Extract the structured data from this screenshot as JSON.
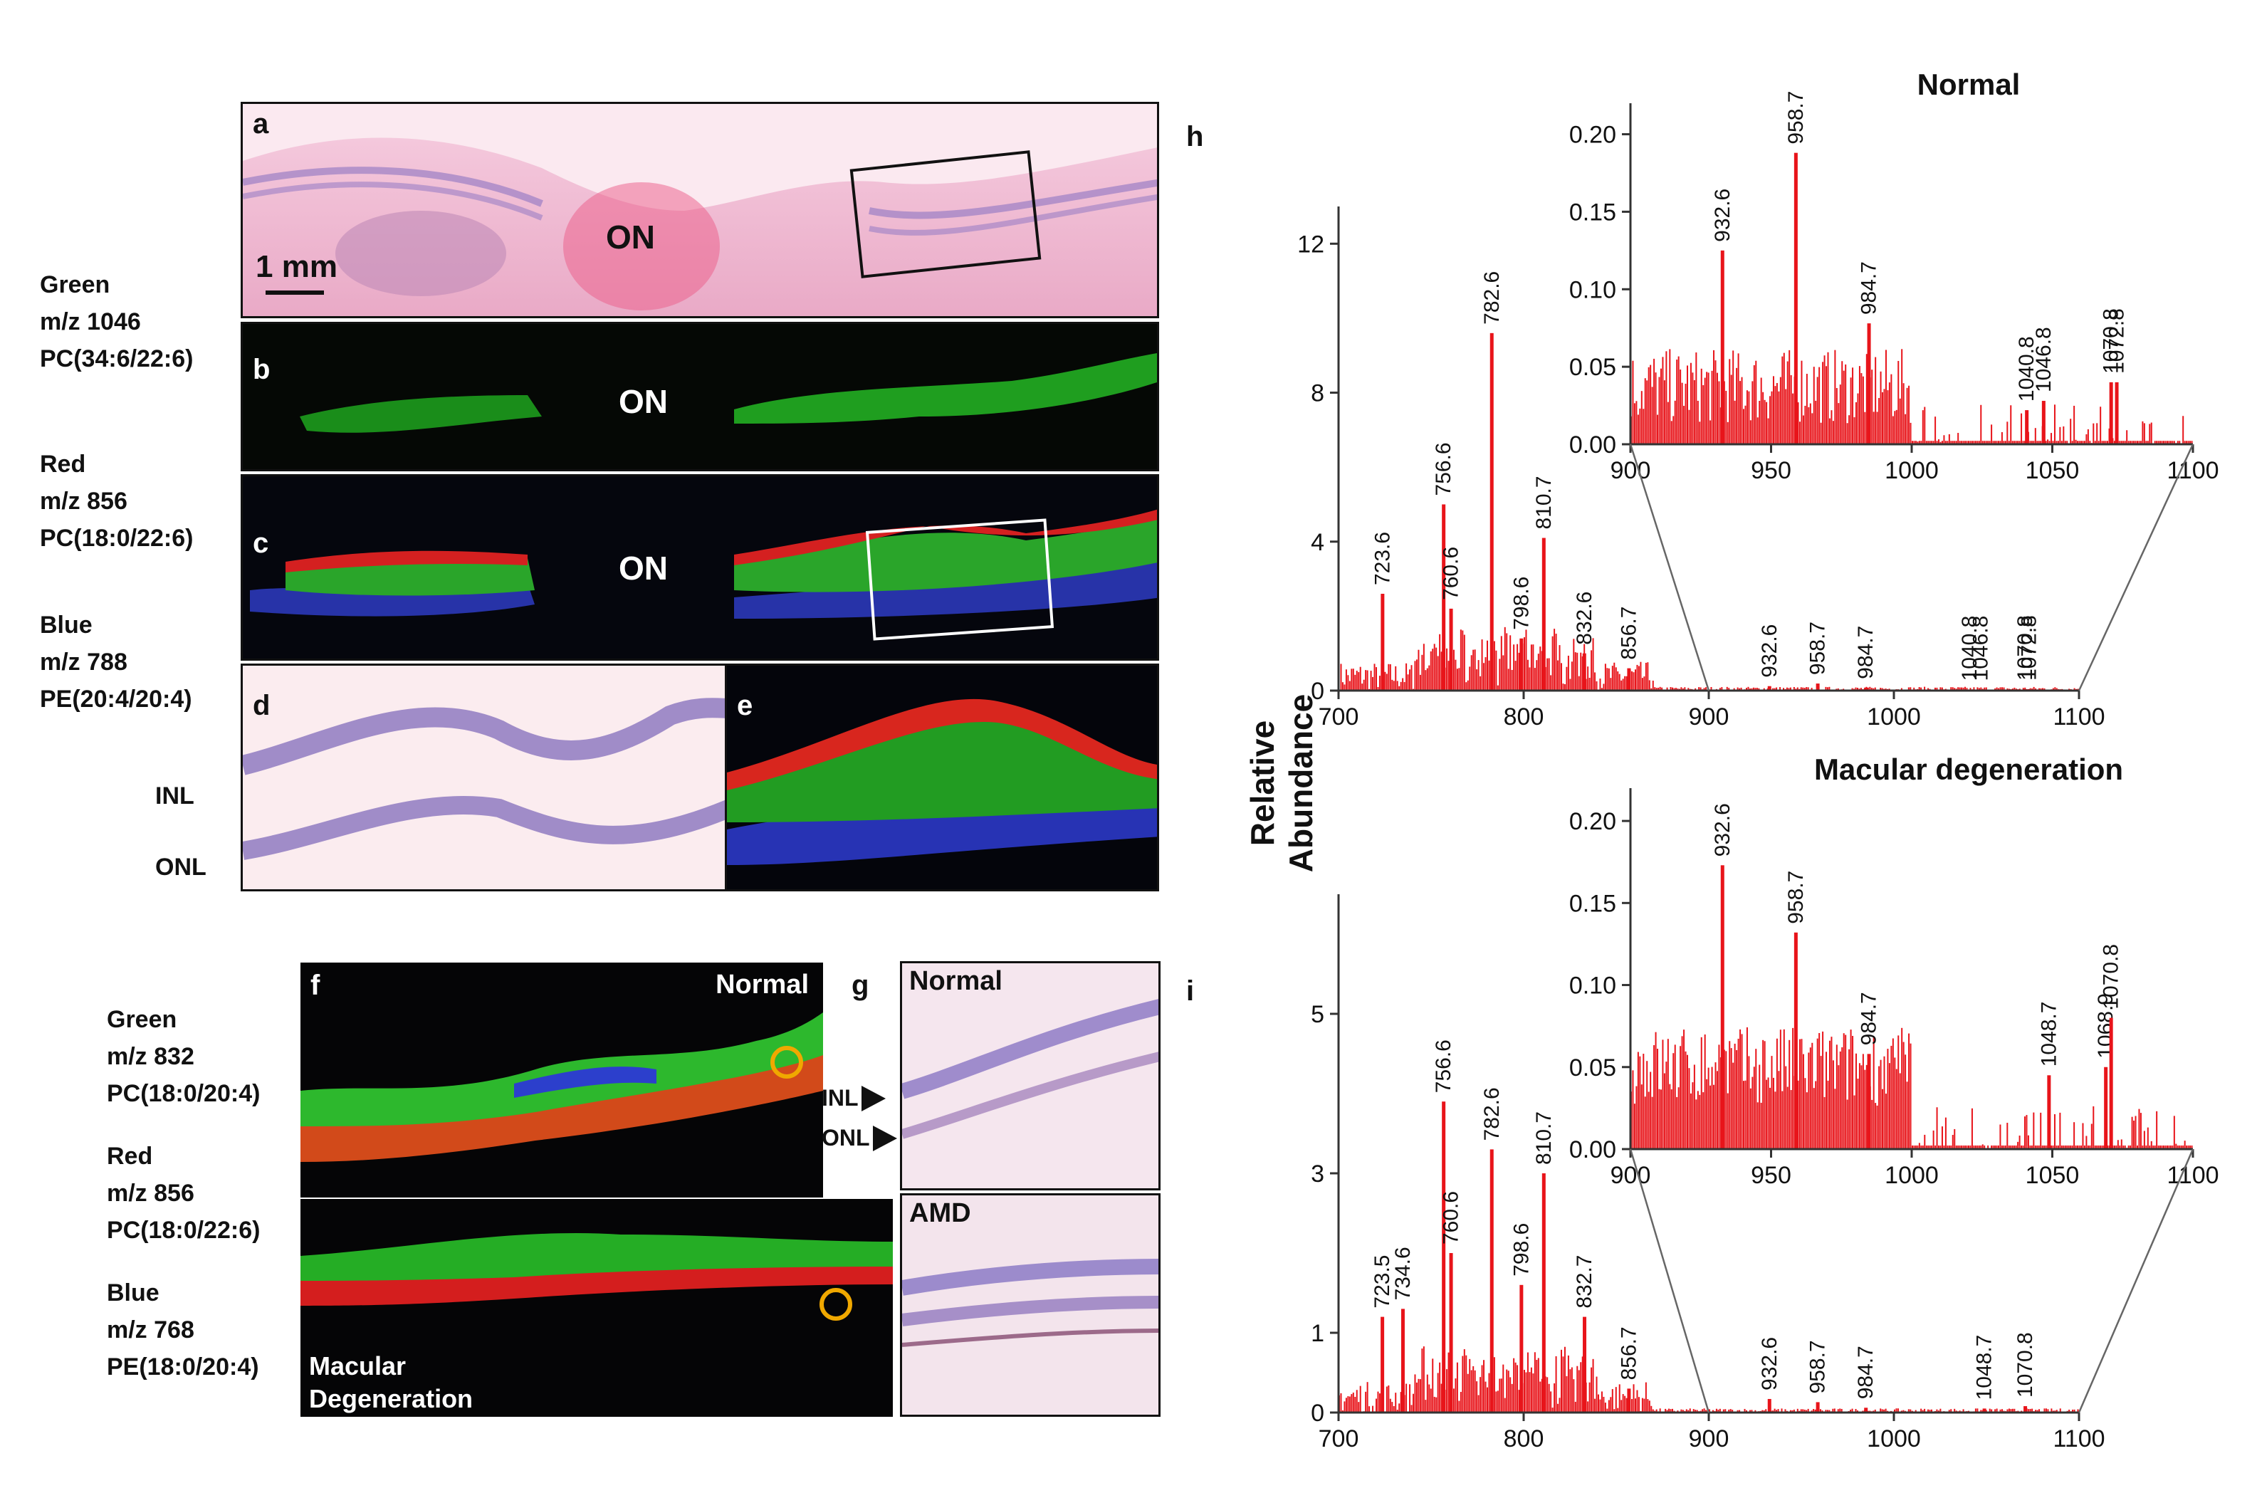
{
  "panel_letters": {
    "a": "a",
    "b": "b",
    "c": "c",
    "d": "d",
    "e": "e",
    "f": "f",
    "g": "g",
    "h": "h",
    "i": "i"
  },
  "panel_a": {
    "region_label": "ON",
    "scale_bar": "1 mm"
  },
  "panel_b": {
    "region_label": "ON"
  },
  "panel_c": {
    "region_label": "ON"
  },
  "panel_d": {
    "layer_inl": "INL",
    "layer_onl": "ONL"
  },
  "channels_top": [
    {
      "color": "Green",
      "mz": "m/z 1046",
      "lipid": "PC(34:6/22:6)"
    },
    {
      "color": "Red",
      "mz": "m/z 856",
      "lipid": "PC(18:0/22:6)"
    },
    {
      "color": "Blue",
      "mz": "m/z 788",
      "lipid": "PE(20:4/20:4)"
    }
  ],
  "channels_bottom": [
    {
      "color": "Green",
      "mz": "m/z 832",
      "lipid": "PC(18:0/20:4)"
    },
    {
      "color": "Red",
      "mz": "m/z 856",
      "lipid": "PC(18:0/22:6)"
    },
    {
      "color": "Blue",
      "mz": "m/z 768",
      "lipid": "PE(18:0/20:4)"
    }
  ],
  "panel_f": {
    "normal_label": "Normal",
    "amd_label_line1": "Macular",
    "amd_label_line2": "Degeneration"
  },
  "panel_g": {
    "normal_label": "Normal",
    "amd_label": "AMD",
    "arrow_inl": "INL",
    "arrow_onl": "ONL"
  },
  "ylabel": "Relative Abundance",
  "chart_data": [
    {
      "type": "bar",
      "panel": "h",
      "title": "",
      "x_range": [
        700,
        1100
      ],
      "y_range": [
        0,
        13
      ],
      "x_ticks": [
        700,
        800,
        900,
        1000,
        1100
      ],
      "y_ticks": [
        0,
        4,
        8,
        12
      ],
      "peaks": [
        {
          "x": 723.6,
          "y": 2.6,
          "label": "723.6"
        },
        {
          "x": 756.6,
          "y": 5.0,
          "label": "756.6"
        },
        {
          "x": 760.6,
          "y": 2.2,
          "label": "760.6"
        },
        {
          "x": 782.6,
          "y": 9.6,
          "label": "782.6"
        },
        {
          "x": 798.6,
          "y": 1.4,
          "label": "798.6"
        },
        {
          "x": 810.7,
          "y": 4.1,
          "label": "810.7"
        },
        {
          "x": 832.6,
          "y": 1.0,
          "label": "832.6"
        },
        {
          "x": 856.7,
          "y": 0.6,
          "label": "856.7"
        },
        {
          "x": 932.6,
          "y": 0.12,
          "label": "932.6"
        },
        {
          "x": 958.7,
          "y": 0.19,
          "label": "958.7"
        },
        {
          "x": 984.7,
          "y": 0.08,
          "label": "984.7"
        },
        {
          "x": 1040.8,
          "y": 0.03,
          "label": "1040.8"
        },
        {
          "x": 1046.8,
          "y": 0.03,
          "label": "1046.8"
        },
        {
          "x": 1070.8,
          "y": 0.04,
          "label": "1070.8"
        },
        {
          "x": 1072.8,
          "y": 0.04,
          "label": "1072.8"
        }
      ]
    },
    {
      "type": "bar",
      "panel": "h-inset",
      "title": "Normal",
      "x_range": [
        900,
        1100
      ],
      "y_range": [
        0,
        0.22
      ],
      "x_ticks": [
        900,
        950,
        1000,
        1050,
        1100
      ],
      "y_ticks": [
        "0.00",
        "0.05",
        "0.10",
        "0.15",
        "0.20"
      ],
      "peaks": [
        {
          "x": 932.6,
          "y": 0.125,
          "label": "932.6"
        },
        {
          "x": 958.7,
          "y": 0.188,
          "label": "958.7"
        },
        {
          "x": 984.7,
          "y": 0.078,
          "label": "984.7"
        },
        {
          "x": 1040.8,
          "y": 0.022,
          "label": "1040.8"
        },
        {
          "x": 1046.8,
          "y": 0.028,
          "label": "1046.8"
        },
        {
          "x": 1070.8,
          "y": 0.04,
          "label": "1070.8"
        },
        {
          "x": 1072.8,
          "y": 0.04,
          "label": "1072.8"
        }
      ]
    },
    {
      "type": "bar",
      "panel": "i",
      "title": "",
      "x_range": [
        700,
        1100
      ],
      "y_range": [
        0,
        6.5
      ],
      "x_ticks": [
        700,
        800,
        900,
        1000,
        1100
      ],
      "y_ticks": [
        0,
        1,
        3,
        5
      ],
      "peaks": [
        {
          "x": 723.5,
          "y": 1.2,
          "label": "723.5"
        },
        {
          "x": 734.6,
          "y": 1.3,
          "label": "734.6"
        },
        {
          "x": 756.6,
          "y": 3.9,
          "label": "756.6"
        },
        {
          "x": 760.6,
          "y": 2.0,
          "label": "760.6"
        },
        {
          "x": 782.6,
          "y": 3.3,
          "label": "782.6"
        },
        {
          "x": 798.6,
          "y": 1.6,
          "label": "798.6"
        },
        {
          "x": 810.7,
          "y": 3.0,
          "label": "810.7"
        },
        {
          "x": 832.7,
          "y": 1.2,
          "label": "832.7"
        },
        {
          "x": 856.7,
          "y": 0.3,
          "label": "856.7"
        },
        {
          "x": 932.6,
          "y": 0.17,
          "label": "932.6"
        },
        {
          "x": 958.7,
          "y": 0.13,
          "label": "958.7"
        },
        {
          "x": 984.7,
          "y": 0.06,
          "label": "984.7"
        },
        {
          "x": 1048.7,
          "y": 0.05,
          "label": "1048.7"
        },
        {
          "x": 1070.8,
          "y": 0.08,
          "label": "1070.8"
        }
      ]
    },
    {
      "type": "bar",
      "panel": "i-inset",
      "title": "Macular degeneration",
      "x_range": [
        900,
        1100
      ],
      "y_range": [
        0,
        0.22
      ],
      "x_ticks": [
        900,
        950,
        1000,
        1050,
        1100
      ],
      "y_ticks": [
        "0.00",
        "0.05",
        "0.10",
        "0.15",
        "0.20"
      ],
      "peaks": [
        {
          "x": 932.6,
          "y": 0.173,
          "label": "932.6"
        },
        {
          "x": 958.7,
          "y": 0.132,
          "label": "958.7"
        },
        {
          "x": 984.7,
          "y": 0.058,
          "label": "984.7"
        },
        {
          "x": 1048.7,
          "y": 0.045,
          "label": "1048.7"
        },
        {
          "x": 1068.9,
          "y": 0.05,
          "label": "1068.9"
        },
        {
          "x": 1070.8,
          "y": 0.08,
          "label": "1070.8"
        }
      ]
    }
  ]
}
